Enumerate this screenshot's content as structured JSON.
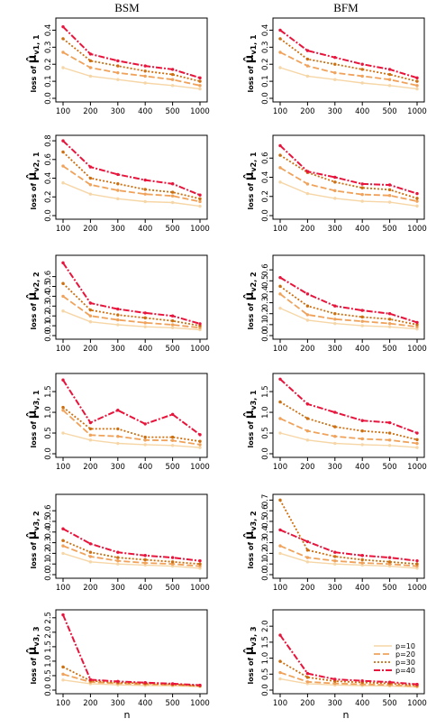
{
  "column_titles": [
    "BSM",
    "BFM"
  ],
  "x_axis_label": "n",
  "y_label_prefix": "loss of",
  "colors": {
    "p10": "#f6d6a6",
    "p20": "#f0a25a",
    "p30": "#cc6f10",
    "p40": "#e8143c"
  },
  "legend": {
    "placement": "bottom-right of last panel",
    "entries": [
      "p=10",
      "p=20",
      "p=30",
      "p=40"
    ]
  },
  "chart_data": [
    {
      "type": "line",
      "column": "BSM",
      "row": 1,
      "ylabel_symbol": "μ̂",
      "ylabel_subscript": "v1, 1",
      "x_categories": [
        "100",
        "200",
        "300",
        "400",
        "500",
        "1000"
      ],
      "yticks": [
        "0.0",
        "0.1",
        "0.2",
        "0.3",
        "0.4"
      ],
      "ylim": [
        0,
        0.45
      ],
      "series": [
        {
          "name": "p=10",
          "values": [
            0.18,
            0.13,
            0.11,
            0.09,
            0.075,
            0.055
          ]
        },
        {
          "name": "p=20",
          "values": [
            0.27,
            0.18,
            0.15,
            0.13,
            0.11,
            0.075
          ]
        },
        {
          "name": "p=30",
          "values": [
            0.35,
            0.22,
            0.19,
            0.16,
            0.14,
            0.1
          ]
        },
        {
          "name": "p=40",
          "values": [
            0.42,
            0.26,
            0.22,
            0.19,
            0.17,
            0.12
          ]
        }
      ]
    },
    {
      "type": "line",
      "column": "BFM",
      "row": 1,
      "ylabel_symbol": "μ̂",
      "ylabel_subscript": "v1, 1",
      "x_categories": [
        "100",
        "200",
        "300",
        "400",
        "500",
        "1000"
      ],
      "yticks": [
        "0.0",
        "0.1",
        "0.2",
        "0.3",
        "0.4"
      ],
      "ylim": [
        0,
        0.45
      ],
      "series": [
        {
          "name": "p=10",
          "values": [
            0.18,
            0.13,
            0.11,
            0.09,
            0.075,
            0.055
          ]
        },
        {
          "name": "p=20",
          "values": [
            0.27,
            0.19,
            0.15,
            0.13,
            0.11,
            0.075
          ]
        },
        {
          "name": "p=30",
          "values": [
            0.35,
            0.23,
            0.2,
            0.17,
            0.14,
            0.1
          ]
        },
        {
          "name": "p=40",
          "values": [
            0.4,
            0.28,
            0.24,
            0.2,
            0.17,
            0.12
          ]
        }
      ]
    },
    {
      "type": "line",
      "column": "BSM",
      "row": 2,
      "ylabel_symbol": "μ̂",
      "ylabel_subscript": "v2, 1",
      "x_categories": [
        "100",
        "200",
        "300",
        "400",
        "500",
        "1000"
      ],
      "yticks": [
        "0.0",
        "0.2",
        "0.4",
        "0.6",
        "0.8"
      ],
      "ylim": [
        0,
        0.82
      ],
      "series": [
        {
          "name": "p=10",
          "values": [
            0.35,
            0.23,
            0.18,
            0.15,
            0.14,
            0.1
          ]
        },
        {
          "name": "p=20",
          "values": [
            0.53,
            0.33,
            0.27,
            0.23,
            0.21,
            0.15
          ]
        },
        {
          "name": "p=30",
          "values": [
            0.68,
            0.4,
            0.34,
            0.28,
            0.25,
            0.18
          ]
        },
        {
          "name": "p=40",
          "values": [
            0.8,
            0.52,
            0.44,
            0.38,
            0.34,
            0.22
          ]
        }
      ]
    },
    {
      "type": "line",
      "column": "BFM",
      "row": 2,
      "ylabel_symbol": "μ̂",
      "ylabel_subscript": "v2, 1",
      "x_categories": [
        "100",
        "200",
        "300",
        "400",
        "500",
        "1000"
      ],
      "yticks": [
        "0.0",
        "0.2",
        "0.4",
        "0.6"
      ],
      "ylim": [
        0,
        0.8
      ],
      "series": [
        {
          "name": "p=10",
          "values": [
            0.35,
            0.23,
            0.18,
            0.15,
            0.14,
            0.1
          ]
        },
        {
          "name": "p=20",
          "values": [
            0.5,
            0.33,
            0.26,
            0.22,
            0.21,
            0.15
          ]
        },
        {
          "name": "p=30",
          "values": [
            0.63,
            0.45,
            0.35,
            0.29,
            0.27,
            0.18
          ]
        },
        {
          "name": "p=40",
          "values": [
            0.73,
            0.46,
            0.4,
            0.33,
            0.32,
            0.23
          ]
        }
      ]
    },
    {
      "type": "line",
      "column": "BSM",
      "row": 3,
      "ylabel_symbol": "μ̂",
      "ylabel_subscript": "v2, 2",
      "x_categories": [
        "100",
        "200",
        "300",
        "400",
        "500",
        "1000"
      ],
      "yticks": [
        "0.0",
        "0.1",
        "0.2",
        "0.3",
        "0.4",
        "0.5",
        "0.6"
      ],
      "ylim": [
        0,
        0.78
      ],
      "series": [
        {
          "name": "p=10",
          "values": [
            0.25,
            0.14,
            0.11,
            0.09,
            0.08,
            0.06
          ]
        },
        {
          "name": "p=20",
          "values": [
            0.4,
            0.2,
            0.16,
            0.13,
            0.11,
            0.08
          ]
        },
        {
          "name": "p=30",
          "values": [
            0.53,
            0.26,
            0.21,
            0.18,
            0.15,
            0.1
          ]
        },
        {
          "name": "p=40",
          "values": [
            0.74,
            0.33,
            0.27,
            0.23,
            0.2,
            0.12
          ]
        }
      ]
    },
    {
      "type": "line",
      "column": "BFM",
      "row": 3,
      "ylabel_symbol": "μ̂",
      "ylabel_subscript": "v2, 2",
      "x_categories": [
        "100",
        "200",
        "300",
        "400",
        "500",
        "1000"
      ],
      "yticks": [
        "0.0",
        "0.1",
        "0.2",
        "0.3",
        "0.4",
        "0.5",
        "0.6"
      ],
      "ylim": [
        0,
        0.7
      ],
      "series": [
        {
          "name": "p=10",
          "values": [
            0.25,
            0.14,
            0.11,
            0.09,
            0.08,
            0.06
          ]
        },
        {
          "name": "p=20",
          "values": [
            0.38,
            0.19,
            0.15,
            0.13,
            0.11,
            0.08
          ]
        },
        {
          "name": "p=30",
          "values": [
            0.45,
            0.27,
            0.2,
            0.17,
            0.15,
            0.1
          ]
        },
        {
          "name": "p=40",
          "values": [
            0.53,
            0.38,
            0.27,
            0.23,
            0.2,
            0.12
          ]
        }
      ]
    },
    {
      "type": "line",
      "column": "BSM",
      "row": 4,
      "ylabel_symbol": "μ̂",
      "ylabel_subscript": "v3, 1",
      "x_categories": [
        "100",
        "200",
        "300",
        "400",
        "500",
        "1000"
      ],
      "yticks": [
        "0.0",
        "0.5",
        "1.0",
        "1.5"
      ],
      "ylim": [
        0,
        1.85
      ],
      "series": [
        {
          "name": "p=10",
          "values": [
            0.5,
            0.33,
            0.25,
            0.22,
            0.2,
            0.15
          ]
        },
        {
          "name": "p=20",
          "values": [
            1.05,
            0.45,
            0.42,
            0.33,
            0.32,
            0.22
          ]
        },
        {
          "name": "p=30",
          "values": [
            1.12,
            0.6,
            0.6,
            0.4,
            0.4,
            0.3
          ]
        },
        {
          "name": "p=40",
          "values": [
            1.78,
            0.75,
            1.05,
            0.72,
            0.95,
            0.46
          ]
        }
      ]
    },
    {
      "type": "line",
      "column": "BFM",
      "row": 4,
      "ylabel_symbol": "μ̂",
      "ylabel_subscript": "v3, 1",
      "x_categories": [
        "100",
        "200",
        "300",
        "400",
        "500",
        "1000"
      ],
      "yticks": [
        "0.0",
        "0.5",
        "1.0",
        "1.5"
      ],
      "ylim": [
        0,
        1.85
      ],
      "series": [
        {
          "name": "p=10",
          "values": [
            0.5,
            0.33,
            0.25,
            0.22,
            0.2,
            0.15
          ]
        },
        {
          "name": "p=20",
          "values": [
            0.85,
            0.55,
            0.42,
            0.36,
            0.33,
            0.25
          ]
        },
        {
          "name": "p=30",
          "values": [
            1.25,
            0.85,
            0.65,
            0.55,
            0.5,
            0.34
          ]
        },
        {
          "name": "p=40",
          "values": [
            1.8,
            1.2,
            1.0,
            0.8,
            0.75,
            0.5
          ]
        }
      ]
    },
    {
      "type": "line",
      "column": "BSM",
      "row": 5,
      "ylabel_symbol": "μ̂",
      "ylabel_subscript": "v3, 2",
      "x_categories": [
        "100",
        "200",
        "300",
        "400",
        "500",
        "1000"
      ],
      "yticks": [
        "0.0",
        "0.1",
        "0.2",
        "0.3",
        "0.4",
        "0.5",
        "0.6"
      ],
      "ylim": [
        0,
        0.72
      ],
      "series": [
        {
          "name": "p=10",
          "values": [
            0.2,
            0.12,
            0.1,
            0.09,
            0.08,
            0.06
          ]
        },
        {
          "name": "p=20",
          "values": [
            0.27,
            0.17,
            0.13,
            0.11,
            0.1,
            0.08
          ]
        },
        {
          "name": "p=30",
          "values": [
            0.32,
            0.21,
            0.16,
            0.14,
            0.12,
            0.1
          ]
        },
        {
          "name": "p=40",
          "values": [
            0.43,
            0.29,
            0.21,
            0.18,
            0.16,
            0.13
          ]
        }
      ]
    },
    {
      "type": "line",
      "column": "BFM",
      "row": 5,
      "ylabel_symbol": "μ̂",
      "ylabel_subscript": "v3, 2",
      "x_categories": [
        "100",
        "200",
        "300",
        "400",
        "500",
        "1000"
      ],
      "yticks": [
        "0.0",
        "0.1",
        "0.2",
        "0.3",
        "0.4",
        "0.5",
        "0.6",
        "0.7"
      ],
      "ylim": [
        0,
        0.72
      ],
      "series": [
        {
          "name": "p=10",
          "values": [
            0.2,
            0.12,
            0.1,
            0.09,
            0.08,
            0.06
          ]
        },
        {
          "name": "p=20",
          "values": [
            0.27,
            0.16,
            0.13,
            0.11,
            0.1,
            0.08
          ]
        },
        {
          "name": "p=30",
          "values": [
            0.7,
            0.23,
            0.17,
            0.14,
            0.12,
            0.1
          ]
        },
        {
          "name": "p=40",
          "values": [
            0.42,
            0.31,
            0.21,
            0.18,
            0.16,
            0.13
          ]
        }
      ]
    },
    {
      "type": "line",
      "column": "BSM",
      "row": 6,
      "ylabel_symbol": "μ̂",
      "ylabel_subscript": "v3, 3",
      "x_categories": [
        "100",
        "200",
        "300",
        "400",
        "500",
        "1000"
      ],
      "yticks": [
        "0.0",
        "0.5",
        "1.0",
        "1.5",
        "2.0",
        "2.5"
      ],
      "ylim": [
        0,
        2.65
      ],
      "series": [
        {
          "name": "p=10",
          "values": [
            0.35,
            0.22,
            0.18,
            0.16,
            0.15,
            0.12
          ]
        },
        {
          "name": "p=20",
          "values": [
            0.55,
            0.28,
            0.23,
            0.2,
            0.18,
            0.14
          ]
        },
        {
          "name": "p=30",
          "values": [
            0.8,
            0.32,
            0.26,
            0.23,
            0.2,
            0.15
          ]
        },
        {
          "name": "p=40",
          "values": [
            2.6,
            0.36,
            0.3,
            0.26,
            0.22,
            0.17
          ]
        }
      ]
    },
    {
      "type": "line",
      "column": "BFM",
      "row": 6,
      "ylabel_symbol": "μ̂",
      "ylabel_subscript": "v3, 3",
      "x_categories": [
        "100",
        "200",
        "300",
        "400",
        "500",
        "1000"
      ],
      "yticks": [
        "0.0",
        "0.5",
        "1.0",
        "1.5",
        "2.0"
      ],
      "ylim": [
        0,
        2.4
      ],
      "series": [
        {
          "name": "p=10",
          "values": [
            0.35,
            0.2,
            0.16,
            0.14,
            0.13,
            0.1
          ]
        },
        {
          "name": "p=20",
          "values": [
            0.55,
            0.26,
            0.21,
            0.18,
            0.16,
            0.12
          ]
        },
        {
          "name": "p=30",
          "values": [
            0.9,
            0.4,
            0.28,
            0.24,
            0.21,
            0.15
          ]
        },
        {
          "name": "p=40",
          "values": [
            1.72,
            0.52,
            0.34,
            0.29,
            0.25,
            0.18
          ]
        }
      ]
    }
  ]
}
